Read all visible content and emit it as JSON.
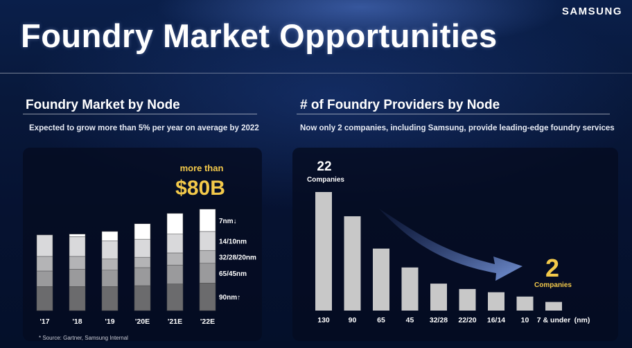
{
  "brand": "SAMSUNG",
  "title": "Foundry Market Opportunities",
  "left": {
    "heading": "Foundry Market by Node",
    "subtitle": "Expected to grow more than 5% per year on average by 2022",
    "callout_top": "more than",
    "callout_value": "$80B",
    "source": "* Source: Gartner, Samsung Internal"
  },
  "right": {
    "heading": "# of Foundry Providers by Node",
    "subtitle": "Now only 2 companies, including Samsung, provide leading-edge foundry services",
    "start_count": "22",
    "start_label": "Companies",
    "end_count": "2",
    "end_label": "Companies",
    "unit": "(nm)"
  },
  "colors": {
    "callout": "#f3c94a",
    "bar_light": "#c8c8c8",
    "arrow": "#6f8fd6"
  },
  "chart_data": [
    {
      "type": "bar",
      "stacked": true,
      "categories": [
        "'17",
        "'18",
        "'19",
        "'20E",
        "'21E",
        "'22E"
      ],
      "series": [
        {
          "name": "90nm↑",
          "values": [
            28,
            28,
            28,
            29,
            31,
            32
          ],
          "color": "#6b6b6d"
        },
        {
          "name": "65/45nm",
          "values": [
            18,
            20,
            19,
            21,
            22,
            23
          ],
          "color": "#9a9a9c"
        },
        {
          "name": "32/28/20nm",
          "values": [
            17,
            15,
            13,
            12,
            14,
            15
          ],
          "color": "#b4b4b6"
        },
        {
          "name": "14/10nm",
          "values": [
            25,
            23,
            21,
            21,
            22,
            22
          ],
          "color": "#d9d9db"
        },
        {
          "name": "7nm↓",
          "values": [
            0,
            3,
            11,
            18,
            24,
            26
          ],
          "color": "#ffffff"
        }
      ],
      "ylim": [
        0,
        125
      ],
      "annotation": "more than $80B"
    },
    {
      "type": "bar",
      "categories": [
        "130",
        "90",
        "65",
        "45",
        "32/28",
        "22/20",
        "16/14",
        "10",
        "7 & under"
      ],
      "values": [
        22,
        17.5,
        11.5,
        8,
        5,
        4,
        3.4,
        2.6,
        1.6
      ],
      "xlabel": "(nm)",
      "ylim": [
        0,
        25
      ],
      "annotations": [
        "22 Companies",
        "2 Companies"
      ]
    }
  ]
}
